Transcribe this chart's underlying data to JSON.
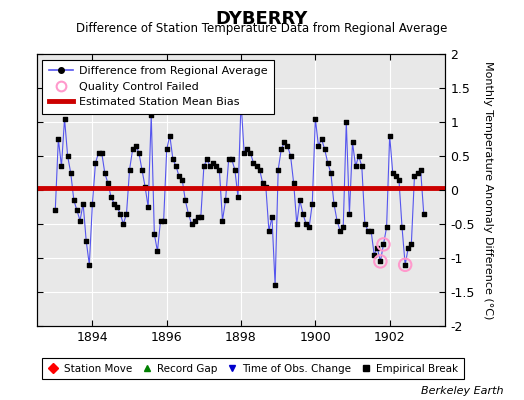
{
  "title": "DYBERRY",
  "subtitle": "Difference of Station Temperature Data from Regional Average",
  "ylabel": "Monthly Temperature Anomaly Difference (°C)",
  "credit": "Berkeley Earth",
  "xlim": [
    1892.5,
    1903.5
  ],
  "ylim": [
    -2.0,
    2.0
  ],
  "yticks": [
    -2,
    -1.5,
    -1,
    -0.5,
    0,
    0.5,
    1,
    1.5,
    2
  ],
  "xticks": [
    1894,
    1896,
    1898,
    1900,
    1902
  ],
  "bias": 0.03,
  "line_color": "#5555ee",
  "dot_color": "#000000",
  "bias_color": "#cc0000",
  "qc_color": "#ff99cc",
  "background_color": "#e8e8e8",
  "grid_color": "#ffffff",
  "monthly_data": [
    [
      1893.0,
      -0.3
    ],
    [
      1893.083,
      0.75
    ],
    [
      1893.167,
      0.35
    ],
    [
      1893.25,
      1.05
    ],
    [
      1893.333,
      0.5
    ],
    [
      1893.417,
      0.25
    ],
    [
      1893.5,
      -0.15
    ],
    [
      1893.583,
      -0.3
    ],
    [
      1893.667,
      -0.45
    ],
    [
      1893.75,
      -0.2
    ],
    [
      1893.833,
      -0.75
    ],
    [
      1893.917,
      -1.1
    ],
    [
      1894.0,
      -0.2
    ],
    [
      1894.083,
      0.4
    ],
    [
      1894.167,
      0.55
    ],
    [
      1894.25,
      0.55
    ],
    [
      1894.333,
      0.25
    ],
    [
      1894.417,
      0.1
    ],
    [
      1894.5,
      -0.1
    ],
    [
      1894.583,
      -0.2
    ],
    [
      1894.667,
      -0.25
    ],
    [
      1894.75,
      -0.35
    ],
    [
      1894.833,
      -0.5
    ],
    [
      1894.917,
      -0.35
    ],
    [
      1895.0,
      0.3
    ],
    [
      1895.083,
      0.6
    ],
    [
      1895.167,
      0.65
    ],
    [
      1895.25,
      0.55
    ],
    [
      1895.333,
      0.3
    ],
    [
      1895.417,
      0.05
    ],
    [
      1895.5,
      -0.25
    ],
    [
      1895.583,
      1.1
    ],
    [
      1895.667,
      -0.65
    ],
    [
      1895.75,
      -0.9
    ],
    [
      1895.833,
      -0.45
    ],
    [
      1895.917,
      -0.45
    ],
    [
      1896.0,
      0.6
    ],
    [
      1896.083,
      0.8
    ],
    [
      1896.167,
      0.45
    ],
    [
      1896.25,
      0.35
    ],
    [
      1896.333,
      0.2
    ],
    [
      1896.417,
      0.15
    ],
    [
      1896.5,
      -0.15
    ],
    [
      1896.583,
      -0.35
    ],
    [
      1896.667,
      -0.5
    ],
    [
      1896.75,
      -0.45
    ],
    [
      1896.833,
      -0.4
    ],
    [
      1896.917,
      -0.4
    ],
    [
      1897.0,
      0.35
    ],
    [
      1897.083,
      0.45
    ],
    [
      1897.167,
      0.35
    ],
    [
      1897.25,
      0.4
    ],
    [
      1897.333,
      0.35
    ],
    [
      1897.417,
      0.3
    ],
    [
      1897.5,
      -0.45
    ],
    [
      1897.583,
      -0.15
    ],
    [
      1897.667,
      0.45
    ],
    [
      1897.75,
      0.45
    ],
    [
      1897.833,
      0.3
    ],
    [
      1897.917,
      -0.1
    ],
    [
      1898.0,
      1.3
    ],
    [
      1898.083,
      0.55
    ],
    [
      1898.167,
      0.6
    ],
    [
      1898.25,
      0.55
    ],
    [
      1898.333,
      0.4
    ],
    [
      1898.417,
      0.35
    ],
    [
      1898.5,
      0.3
    ],
    [
      1898.583,
      0.1
    ],
    [
      1898.667,
      0.05
    ],
    [
      1898.75,
      -0.6
    ],
    [
      1898.833,
      -0.4
    ],
    [
      1898.917,
      -1.4
    ],
    [
      1899.0,
      0.3
    ],
    [
      1899.083,
      0.6
    ],
    [
      1899.167,
      0.7
    ],
    [
      1899.25,
      0.65
    ],
    [
      1899.333,
      0.5
    ],
    [
      1899.417,
      0.1
    ],
    [
      1899.5,
      -0.5
    ],
    [
      1899.583,
      -0.15
    ],
    [
      1899.667,
      -0.35
    ],
    [
      1899.75,
      -0.5
    ],
    [
      1899.833,
      -0.55
    ],
    [
      1899.917,
      -0.2
    ],
    [
      1900.0,
      1.05
    ],
    [
      1900.083,
      0.65
    ],
    [
      1900.167,
      0.75
    ],
    [
      1900.25,
      0.6
    ],
    [
      1900.333,
      0.4
    ],
    [
      1900.417,
      0.25
    ],
    [
      1900.5,
      -0.2
    ],
    [
      1900.583,
      -0.45
    ],
    [
      1900.667,
      -0.6
    ],
    [
      1900.75,
      -0.55
    ],
    [
      1900.833,
      1.0
    ],
    [
      1900.917,
      -0.35
    ],
    [
      1901.0,
      0.7
    ],
    [
      1901.083,
      0.35
    ],
    [
      1901.167,
      0.5
    ],
    [
      1901.25,
      0.35
    ],
    [
      1901.333,
      -0.5
    ],
    [
      1901.417,
      -0.6
    ],
    [
      1901.5,
      -0.6
    ],
    [
      1901.583,
      -0.95
    ],
    [
      1901.667,
      -0.85
    ],
    [
      1901.75,
      -1.05
    ],
    [
      1901.833,
      -0.8
    ],
    [
      1901.917,
      -0.55
    ],
    [
      1902.0,
      0.8
    ],
    [
      1902.083,
      0.25
    ],
    [
      1902.167,
      0.2
    ],
    [
      1902.25,
      0.15
    ],
    [
      1902.333,
      -0.55
    ],
    [
      1902.417,
      -1.1
    ],
    [
      1902.5,
      -0.85
    ],
    [
      1902.583,
      -0.8
    ],
    [
      1902.667,
      0.2
    ],
    [
      1902.75,
      0.25
    ],
    [
      1902.833,
      0.3
    ],
    [
      1902.917,
      -0.35
    ]
  ],
  "qc_points": [
    [
      1901.75,
      -1.05
    ],
    [
      1901.833,
      -0.8
    ],
    [
      1902.417,
      -1.1
    ]
  ]
}
